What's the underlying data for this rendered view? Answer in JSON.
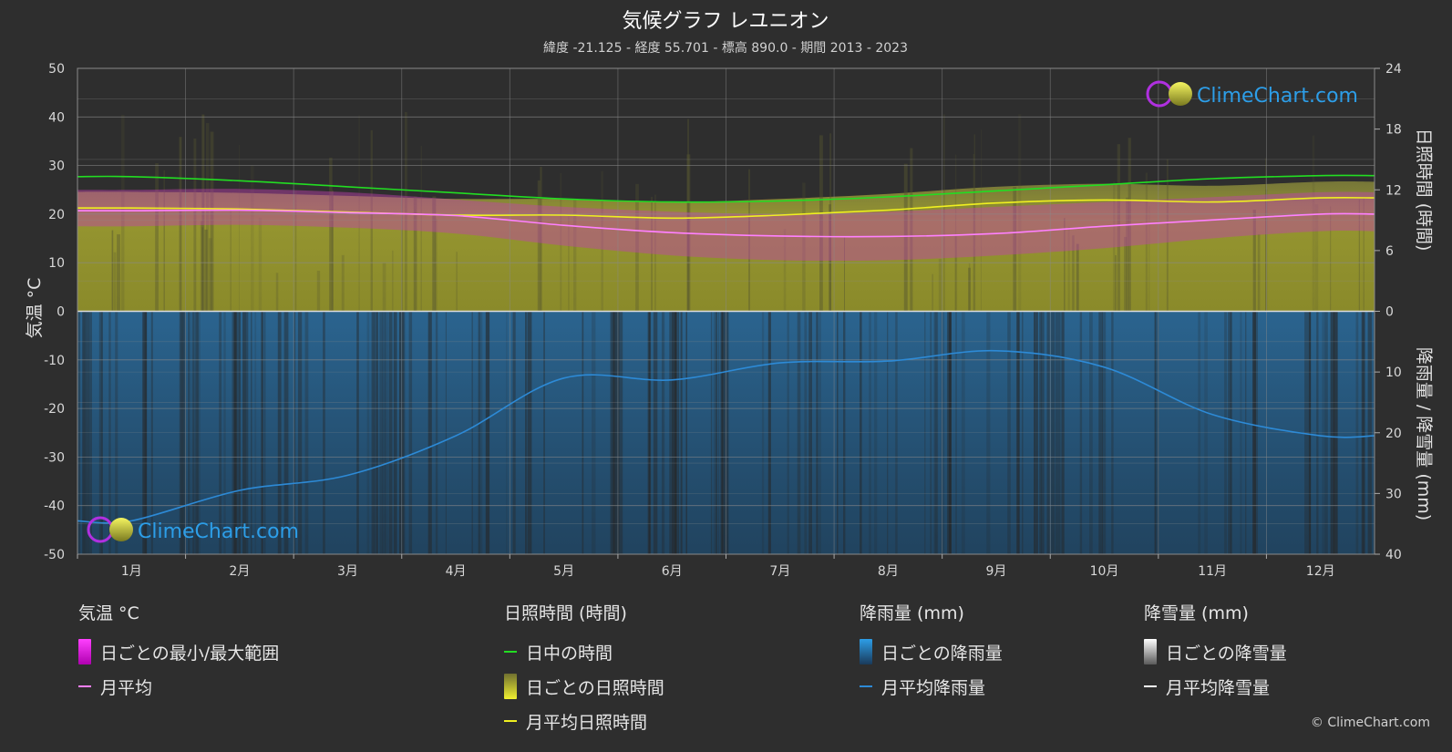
{
  "title": "気候グラフ レユニオン",
  "subtitle": "緯度 -21.125 - 経度 55.701 - 標高 890.0 - 期間 2013 - 2023",
  "logo_text": "ClimeChart.com",
  "copyright": "© ClimeChart.com",
  "colors": {
    "background": "#2e2e2e",
    "temp_range": "#e020e0",
    "temp_avg": "#ff80ff",
    "daylight": "#22dd22",
    "sunshine_fill": "#9a9a30",
    "sunshine_avg": "#f0f020",
    "rain_fill": "#1f5f8f",
    "rain_avg": "#2d8ad6",
    "snow_avg": "#ffffff",
    "logo": "#2d9ee8"
  },
  "chart_data": {
    "type": "area",
    "categories": [
      "1月",
      "2月",
      "3月",
      "4月",
      "5月",
      "6月",
      "7月",
      "8月",
      "9月",
      "10月",
      "11月",
      "12月"
    ],
    "axes": {
      "left": {
        "label": "気温 °C",
        "range": [
          -50,
          50
        ],
        "ticks": [
          50,
          40,
          30,
          20,
          10,
          0,
          -10,
          -20,
          -30,
          -40,
          -50
        ]
      },
      "right_top": {
        "label": "日照時間 (時間)",
        "range": [
          0,
          24
        ],
        "ticks": [
          24,
          18,
          12,
          6,
          0
        ]
      },
      "right_bottom": {
        "label": "降雨量 / 降雪量 (mm)",
        "range": [
          0,
          40
        ],
        "ticks": [
          10,
          20,
          30,
          40
        ]
      }
    },
    "grid": true,
    "series": [
      {
        "name": "日中の時間",
        "axis": "right_top",
        "values": [
          13.3,
          12.9,
          12.3,
          11.7,
          11.1,
          10.8,
          10.9,
          11.3,
          11.9,
          12.5,
          13.1,
          13.4
        ]
      },
      {
        "name": "月平均日照時間",
        "axis": "right_top",
        "values": [
          10.2,
          10.1,
          9.8,
          9.5,
          9.5,
          9.2,
          9.5,
          10.0,
          10.7,
          11.0,
          10.8,
          11.2
        ]
      },
      {
        "name": "月平均",
        "axis": "left",
        "values": [
          20.7,
          20.8,
          20.3,
          19.7,
          17.7,
          16.2,
          15.5,
          15.4,
          16.0,
          17.5,
          18.8,
          20.0
        ]
      },
      {
        "name": "日ごとの最小/最大範囲",
        "axis": "left",
        "min": [
          17.5,
          17.8,
          17.2,
          16.0,
          13.5,
          11.5,
          10.5,
          10.5,
          11.5,
          13.0,
          15.0,
          16.5
        ],
        "max": [
          25.0,
          25.2,
          24.5,
          23.0,
          21.5,
          20.5,
          20.0,
          20.5,
          21.5,
          22.5,
          23.5,
          24.5
        ]
      },
      {
        "name": "月平均降雨量",
        "axis": "right_bottom",
        "values": [
          34.5,
          29.5,
          27.0,
          20.5,
          11.0,
          11.3,
          8.5,
          8.2,
          6.5,
          9.2,
          17.0,
          20.5
        ]
      },
      {
        "name": "月平均降雪量",
        "axis": "right_bottom",
        "values": [
          0,
          0,
          0,
          0,
          0,
          0,
          0,
          0,
          0,
          0,
          0,
          0
        ]
      }
    ]
  },
  "legend": {
    "temperature": {
      "title": "気温 °C",
      "range": "日ごとの最小/最大範囲",
      "avg": "月平均"
    },
    "sunshine": {
      "title": "日照時間 (時間)",
      "daylight": "日中の時間",
      "daily": "日ごとの日照時間",
      "avg": "月平均日照時間"
    },
    "rain": {
      "title": "降雨量 (mm)",
      "daily": "日ごとの降雨量",
      "avg": "月平均降雨量"
    },
    "snow": {
      "title": "降雪量 (mm)",
      "daily": "日ごとの降雪量",
      "avg": "月平均降雪量"
    }
  }
}
